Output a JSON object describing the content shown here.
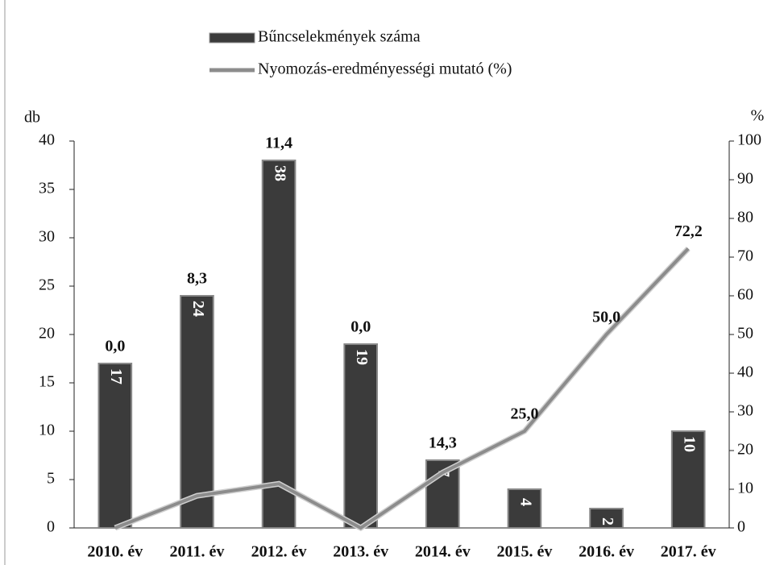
{
  "chart_data": {
    "type": "combo",
    "categories": [
      "2010. év",
      "2011. év",
      "2012. év",
      "2013. év",
      "2014. év",
      "2015. év",
      "2016. év",
      "2017. év"
    ],
    "series": [
      {
        "name": "Bűncselekmények száma",
        "type": "bar",
        "color": "#3b3b3b",
        "values": [
          17,
          24,
          38,
          19,
          7,
          4,
          2,
          10
        ]
      },
      {
        "name": "Nyomozás-eredményességi mutató (%)",
        "type": "line",
        "axis": "y2",
        "color": "#8c8c8c",
        "values": [
          0.0,
          8.3,
          11.4,
          0.0,
          14.3,
          25.0,
          50.0,
          72.2
        ],
        "value_labels": [
          "0,0",
          "8,3",
          "11,4",
          "0,0",
          "14,3",
          "25,0",
          "50,0",
          "72,2"
        ]
      }
    ],
    "y_label": "db",
    "y2_label": "%",
    "ylim": [
      0,
      40
    ],
    "yticks": [
      0,
      5,
      10,
      15,
      20,
      25,
      30,
      35,
      40
    ],
    "y2lim": [
      0,
      100
    ],
    "y2ticks": [
      0,
      10,
      20,
      30,
      40,
      50,
      60,
      70,
      80,
      90,
      100
    ],
    "legend": "top"
  }
}
